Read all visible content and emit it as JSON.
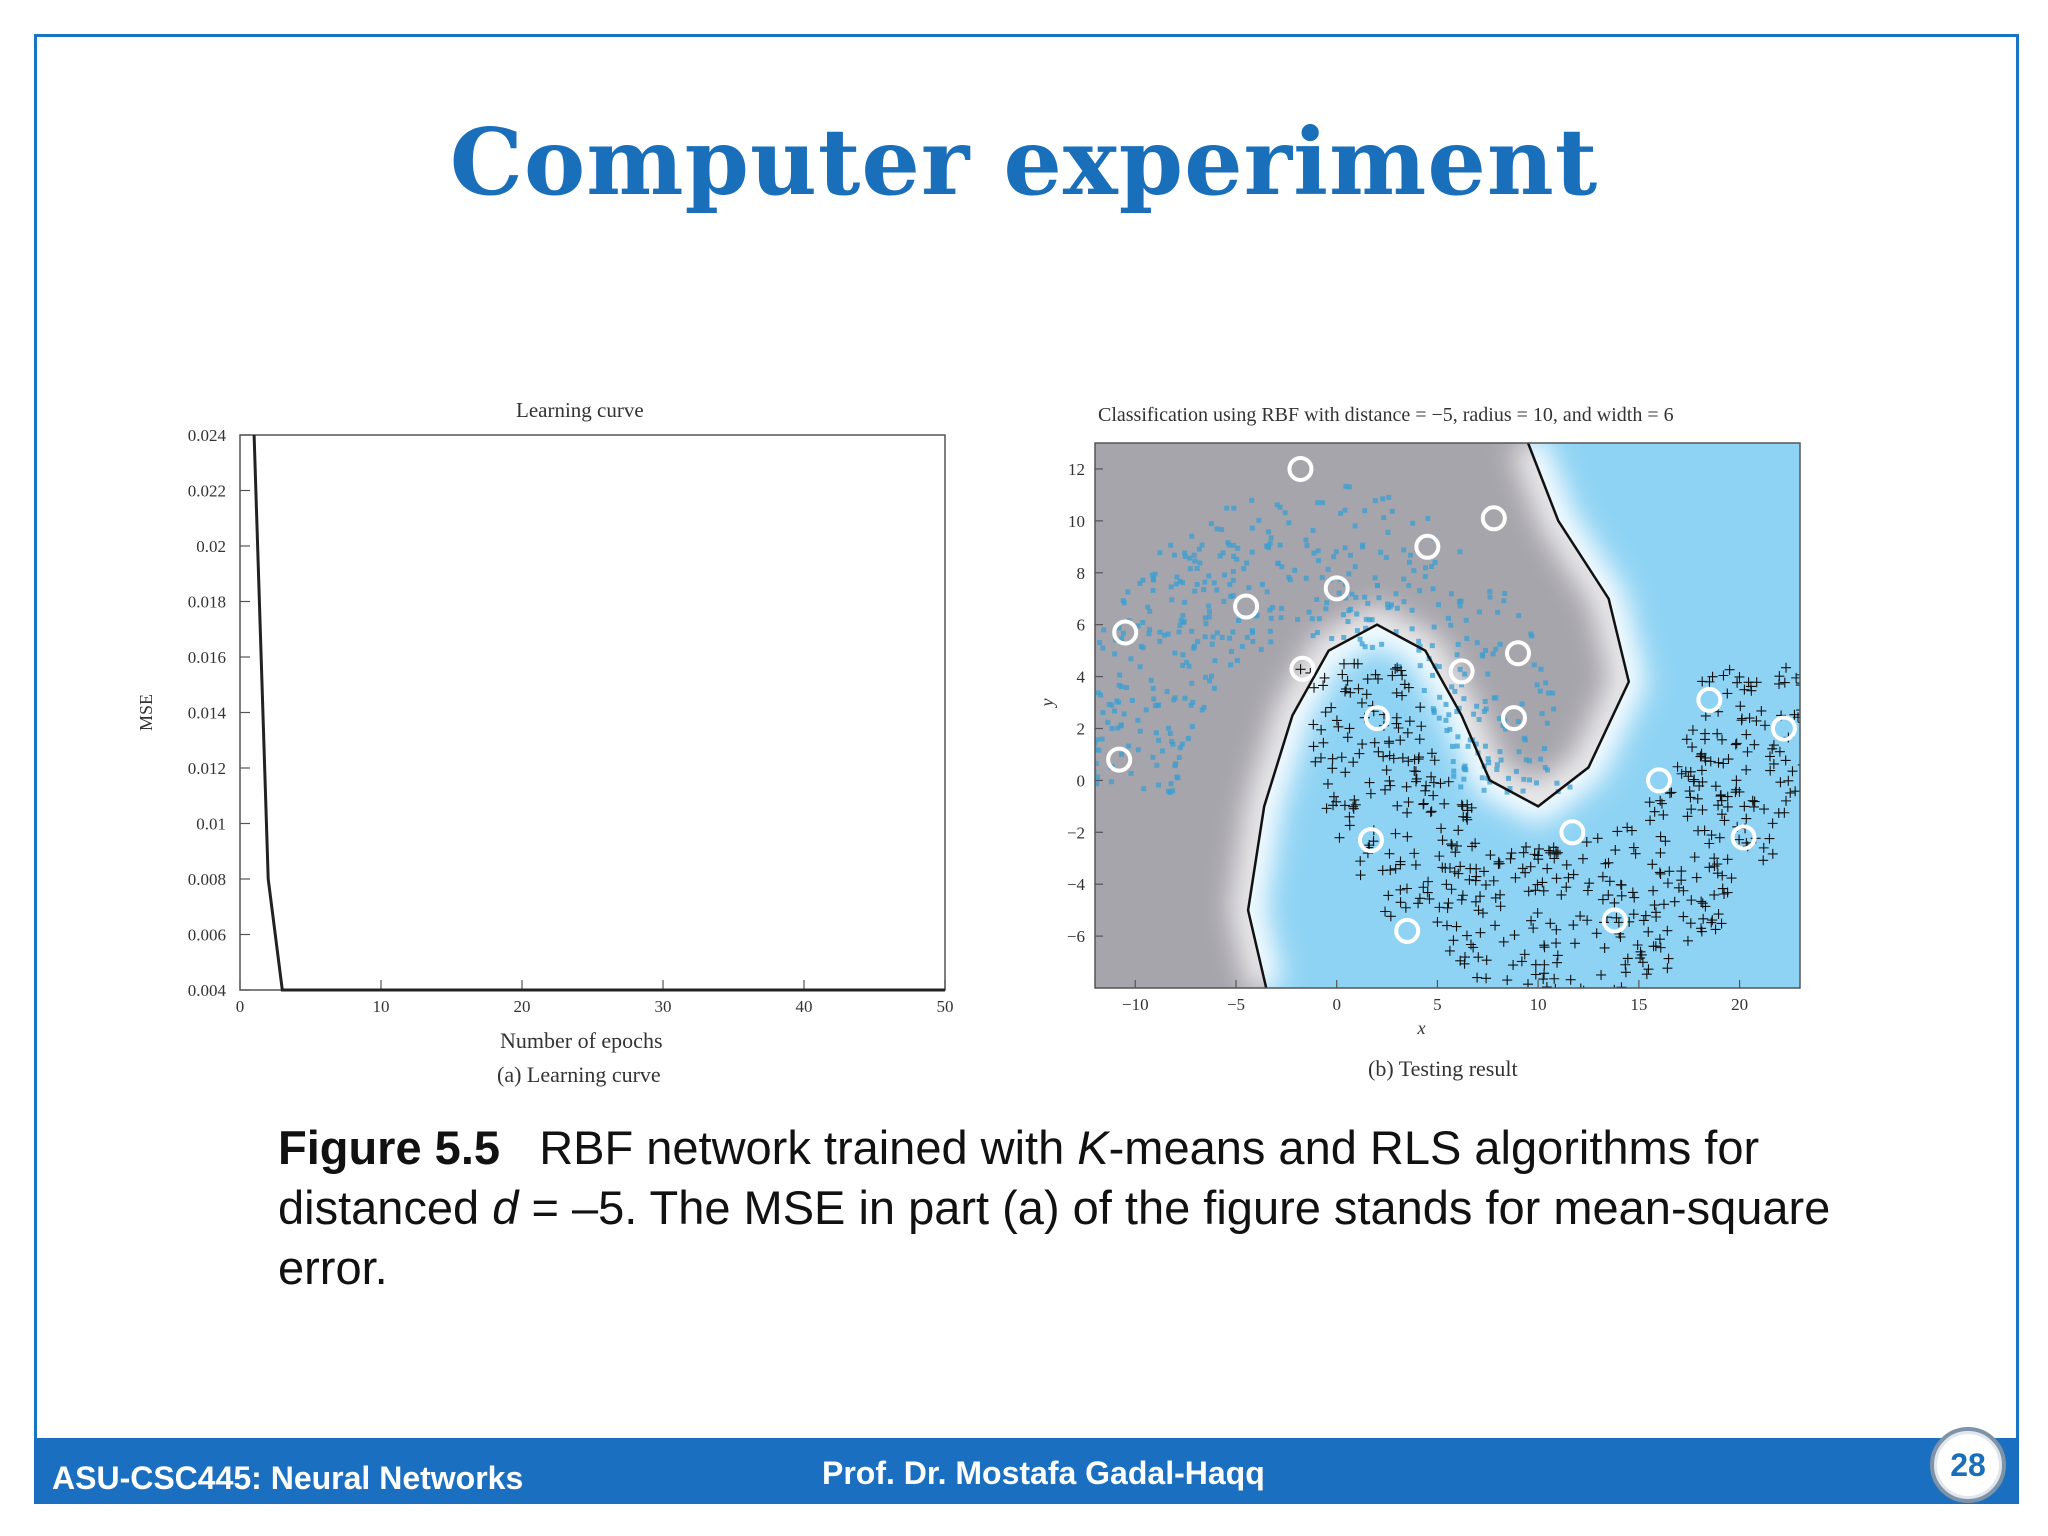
{
  "slide": {
    "title": "Computer experiment",
    "caption": {
      "figure_label": "Figure 5.5",
      "text_1": "RBF network trained with ",
      "k": "K",
      "text_2": "-means and RLS algorithms for distanced ",
      "d": "d",
      "text_3": " = –5. The MSE in part (a) of the figure stands for mean-square error."
    },
    "footer": {
      "course": "ASU-CSC445: Neural Networks",
      "author": "Prof. Dr. Mostafa Gadal-Haqq",
      "page": "28"
    },
    "colors": {
      "accent": "#1a6fba",
      "footer": "#1b6fc0",
      "region_a": "#a7a5ac",
      "region_b": "#8fd3f4"
    }
  },
  "chart_data": [
    {
      "type": "line",
      "title": "Learning curve",
      "subtitle": "(a) Learning curve",
      "xlabel": "Number of epochs",
      "ylabel": "MSE",
      "xlim": [
        0,
        50
      ],
      "ylim": [
        0.004,
        0.024
      ],
      "xticks": [
        "0",
        "10",
        "20",
        "30",
        "40",
        "50"
      ],
      "yticks": [
        "0.004",
        "0.006",
        "0.008",
        "0.01",
        "0.012",
        "0.014",
        "0.016",
        "0.018",
        "0.02",
        "0.022",
        "0.024"
      ],
      "x": [
        1,
        2,
        3,
        50
      ],
      "values": [
        0.024,
        0.008,
        0.004,
        0.004
      ]
    },
    {
      "type": "scatter",
      "title": "Classification using RBF with distance = −5, radius = 10, and width = 6",
      "subtitle": "(b) Testing result",
      "xlabel": "x",
      "ylabel": "y",
      "xlim": [
        -12,
        23
      ],
      "ylim": [
        -8,
        13
      ],
      "xticks": [
        "−10",
        "−5",
        "0",
        "5",
        "10",
        "15",
        "20"
      ],
      "yticks": [
        "−6",
        "−4",
        "−2",
        "0",
        "2",
        "4",
        "6",
        "8",
        "10",
        "12"
      ],
      "centers": [
        {
          "x": -1.8,
          "y": 12
        },
        {
          "x": 7.8,
          "y": 10.1
        },
        {
          "x": 4.5,
          "y": 9
        },
        {
          "x": 0,
          "y": 7.4
        },
        {
          "x": -4.5,
          "y": 6.7
        },
        {
          "x": -10.5,
          "y": 5.7
        },
        {
          "x": 9,
          "y": 4.9
        },
        {
          "x": 6.2,
          "y": 4.2
        },
        {
          "x": -1.7,
          "y": 4.3
        },
        {
          "x": 2,
          "y": 2.4
        },
        {
          "x": 8.8,
          "y": 2.4
        },
        {
          "x": -10.8,
          "y": 0.8
        },
        {
          "x": 18.5,
          "y": 3.1
        },
        {
          "x": 22.2,
          "y": 2
        },
        {
          "x": 16,
          "y": 0
        },
        {
          "x": 11.7,
          "y": -2
        },
        {
          "x": 20.2,
          "y": -2.2
        },
        {
          "x": 1.7,
          "y": -2.3
        },
        {
          "x": 13.8,
          "y": -5.4
        },
        {
          "x": 3.5,
          "y": -5.8
        }
      ]
    }
  ]
}
